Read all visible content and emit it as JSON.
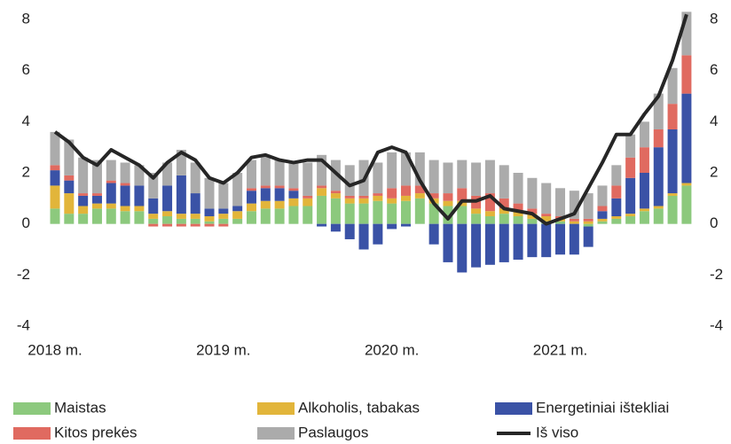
{
  "chart_data": {
    "type": "bar",
    "stacked": true,
    "categories": [
      "2018 m.",
      null,
      null,
      null,
      null,
      null,
      null,
      null,
      null,
      null,
      null,
      null,
      "2019 m.",
      null,
      null,
      null,
      null,
      null,
      null,
      null,
      null,
      null,
      null,
      null,
      "2020 m.",
      null,
      null,
      null,
      null,
      null,
      null,
      null,
      null,
      null,
      null,
      null,
      "2021 m.",
      null,
      null,
      null,
      null,
      null,
      null,
      null,
      null,
      null
    ],
    "series": [
      {
        "name": "Maistas",
        "color": "#8cc97d",
        "values": [
          0.6,
          0.4,
          0.4,
          0.6,
          0.6,
          0.5,
          0.5,
          0.2,
          0.3,
          0.2,
          0.2,
          0.1,
          0.2,
          0.2,
          0.5,
          0.6,
          0.6,
          0.7,
          0.7,
          1.1,
          1.0,
          0.8,
          0.8,
          0.9,
          0.8,
          0.9,
          1.0,
          0.8,
          0.7,
          0.7,
          0.4,
          0.3,
          0.4,
          0.3,
          0.2,
          0.1,
          0.1,
          0.0,
          -0.1,
          0.1,
          0.2,
          0.3,
          0.5,
          0.6,
          1.1,
          1.5
        ]
      },
      {
        "name": "Alkoholis, tabakas",
        "color": "#e2b53a",
        "values": [
          0.9,
          0.8,
          0.3,
          0.2,
          0.2,
          0.2,
          0.2,
          0.2,
          0.2,
          0.2,
          0.2,
          0.2,
          0.2,
          0.3,
          0.3,
          0.3,
          0.3,
          0.3,
          0.3,
          0.3,
          0.2,
          0.2,
          0.2,
          0.2,
          0.2,
          0.2,
          0.2,
          0.2,
          0.2,
          0.2,
          0.2,
          0.2,
          0.2,
          0.2,
          0.2,
          0.2,
          0.1,
          0.1,
          0.1,
          0.1,
          0.1,
          0.1,
          0.1,
          0.1,
          0.1,
          0.1
        ]
      },
      {
        "name": "Energetiniai ištekliai",
        "color": "#3a52a6",
        "values": [
          0.6,
          0.5,
          0.4,
          0.3,
          0.8,
          0.8,
          0.8,
          0.6,
          1.0,
          1.5,
          0.8,
          0.3,
          0.2,
          0.2,
          0.5,
          0.5,
          0.5,
          0.3,
          0.0,
          -0.1,
          -0.3,
          -0.6,
          -1.0,
          -0.8,
          -0.2,
          -0.1,
          0.0,
          -0.8,
          -1.5,
          -1.9,
          -1.7,
          -1.6,
          -1.5,
          -1.4,
          -1.3,
          -1.3,
          -1.2,
          -1.2,
          -0.8,
          0.3,
          0.7,
          1.4,
          1.4,
          2.3,
          2.5,
          3.5
        ]
      },
      {
        "name": "Kitos prekės",
        "color": "#e06a60",
        "values": [
          0.2,
          0.2,
          0.1,
          0.1,
          0.1,
          0.1,
          0.0,
          -0.1,
          -0.1,
          -0.1,
          -0.1,
          -0.1,
          -0.1,
          0.0,
          0.1,
          0.1,
          0.1,
          0.1,
          0.1,
          0.1,
          0.1,
          0.1,
          0.1,
          0.1,
          0.4,
          0.4,
          0.3,
          0.2,
          0.3,
          0.5,
          0.5,
          0.7,
          0.4,
          0.3,
          0.2,
          0.1,
          0.1,
          0.1,
          0.1,
          0.2,
          0.5,
          0.8,
          1.0,
          0.7,
          1.0,
          1.5
        ]
      },
      {
        "name": "Paslaugos",
        "color": "#ababab",
        "values": [
          1.3,
          1.4,
          1.4,
          1.3,
          0.8,
          0.8,
          0.8,
          1.0,
          0.9,
          1.0,
          1.2,
          1.2,
          1.0,
          1.3,
          1.1,
          1.2,
          1.0,
          1.0,
          1.3,
          1.2,
          1.2,
          1.2,
          1.4,
          1.2,
          1.4,
          1.3,
          1.3,
          1.3,
          1.2,
          1.1,
          1.3,
          1.3,
          1.3,
          1.2,
          1.2,
          1.2,
          1.1,
          1.1,
          1.0,
          0.8,
          0.8,
          0.9,
          1.0,
          1.4,
          1.4,
          1.7
        ]
      },
      {
        "name": "Iš viso",
        "type": "line",
        "color": "#262626",
        "values": [
          3.6,
          3.2,
          2.6,
          2.3,
          2.9,
          2.6,
          2.3,
          1.8,
          2.4,
          2.8,
          2.5,
          1.8,
          1.6,
          2.0,
          2.6,
          2.7,
          2.5,
          2.4,
          2.5,
          2.5,
          2.0,
          1.5,
          1.7,
          2.8,
          3.0,
          2.8,
          1.7,
          0.8,
          0.2,
          0.9,
          0.9,
          1.1,
          0.6,
          0.5,
          0.4,
          0.0,
          0.2,
          0.4,
          1.4,
          2.4,
          3.5,
          3.5,
          4.3,
          5.0,
          6.4,
          8.2
        ]
      }
    ],
    "ylim": [
      -4,
      8
    ],
    "yticks": [
      -4,
      -2,
      0,
      2,
      4,
      6,
      8
    ],
    "y2lim": [
      -4,
      8
    ],
    "y2ticks": [
      -4,
      -2,
      0,
      2,
      4,
      6,
      8
    ],
    "grid": false,
    "legend": "bottom"
  }
}
